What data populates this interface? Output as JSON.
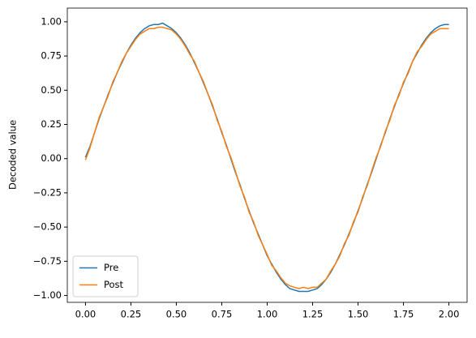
{
  "chart_data": {
    "type": "line",
    "ylabel": "Decoded value",
    "x": [
      0,
      0.025,
      0.05,
      0.075,
      0.1,
      0.125,
      0.15,
      0.175,
      0.2,
      0.225,
      0.25,
      0.275,
      0.3,
      0.325,
      0.35,
      0.375,
      0.4,
      0.425,
      0.45,
      0.475,
      0.5,
      0.525,
      0.55,
      0.575,
      0.6,
      0.625,
      0.65,
      0.675,
      0.7,
      0.725,
      0.75,
      0.775,
      0.8,
      0.825,
      0.85,
      0.875,
      0.9,
      0.925,
      0.95,
      0.975,
      1,
      1.025,
      1.05,
      1.075,
      1.1,
      1.125,
      1.15,
      1.175,
      1.2,
      1.225,
      1.25,
      1.275,
      1.3,
      1.325,
      1.35,
      1.375,
      1.4,
      1.425,
      1.45,
      1.475,
      1.5,
      1.525,
      1.55,
      1.575,
      1.6,
      1.625,
      1.65,
      1.675,
      1.7,
      1.725,
      1.75,
      1.775,
      1.8,
      1.825,
      1.85,
      1.875,
      1.9,
      1.925,
      1.95,
      1.975,
      2
    ],
    "series": [
      {
        "name": "Pre",
        "color": "#1f77b4",
        "values": [
          0.01,
          0.09,
          0.19,
          0.29,
          0.38,
          0.47,
          0.55,
          0.63,
          0.7,
          0.77,
          0.83,
          0.88,
          0.92,
          0.95,
          0.97,
          0.98,
          0.98,
          0.99,
          0.97,
          0.95,
          0.92,
          0.88,
          0.83,
          0.77,
          0.7,
          0.63,
          0.55,
          0.47,
          0.38,
          0.29,
          0.19,
          0.1,
          0.0,
          -0.1,
          -0.19,
          -0.29,
          -0.38,
          -0.47,
          -0.55,
          -0.63,
          -0.71,
          -0.77,
          -0.83,
          -0.88,
          -0.92,
          -0.95,
          -0.96,
          -0.97,
          -0.97,
          -0.97,
          -0.96,
          -0.95,
          -0.92,
          -0.88,
          -0.83,
          -0.77,
          -0.7,
          -0.63,
          -0.55,
          -0.47,
          -0.38,
          -0.29,
          -0.19,
          -0.1,
          0.0,
          0.1,
          0.19,
          0.29,
          0.38,
          0.47,
          0.55,
          0.63,
          0.71,
          0.77,
          0.83,
          0.88,
          0.92,
          0.95,
          0.97,
          0.98,
          0.98
        ]
      },
      {
        "name": "Post",
        "color": "#ff7f0e",
        "values": [
          -0.01,
          0.08,
          0.19,
          0.3,
          0.38,
          0.46,
          0.56,
          0.63,
          0.71,
          0.77,
          0.82,
          0.87,
          0.91,
          0.93,
          0.95,
          0.95,
          0.96,
          0.96,
          0.95,
          0.94,
          0.91,
          0.87,
          0.82,
          0.76,
          0.71,
          0.63,
          0.56,
          0.47,
          0.39,
          0.28,
          0.2,
          0.09,
          0.01,
          -0.09,
          -0.2,
          -0.28,
          -0.39,
          -0.46,
          -0.56,
          -0.63,
          -0.7,
          -0.78,
          -0.82,
          -0.87,
          -0.91,
          -0.93,
          -0.94,
          -0.95,
          -0.94,
          -0.95,
          -0.94,
          -0.94,
          -0.91,
          -0.88,
          -0.82,
          -0.77,
          -0.71,
          -0.62,
          -0.56,
          -0.46,
          -0.39,
          -0.28,
          -0.2,
          -0.09,
          0.01,
          0.09,
          0.2,
          0.28,
          0.39,
          0.46,
          0.56,
          0.62,
          0.71,
          0.78,
          0.82,
          0.87,
          0.91,
          0.93,
          0.95,
          0.95,
          0.95
        ]
      }
    ],
    "xlim": [
      -0.1,
      2.1
    ],
    "xticks": [
      {
        "value": 0,
        "label": "0.00"
      },
      {
        "value": 0.25,
        "label": "0.25"
      },
      {
        "value": 0.5,
        "label": "0.50"
      },
      {
        "value": 0.75,
        "label": "0.75"
      },
      {
        "value": 1,
        "label": "1.00"
      },
      {
        "value": 1.25,
        "label": "1.25"
      },
      {
        "value": 1.5,
        "label": "1.50"
      },
      {
        "value": 1.75,
        "label": "1.75"
      },
      {
        "value": 2,
        "label": "2.00"
      }
    ],
    "ylim": [
      -1.05,
      1.1
    ],
    "yticks": [
      {
        "value": -1,
        "label": "−1.00"
      },
      {
        "value": -0.75,
        "label": "−0.75"
      },
      {
        "value": -0.5,
        "label": "−0.50"
      },
      {
        "value": -0.25,
        "label": "−0.25"
      },
      {
        "value": 0,
        "label": "0.00"
      },
      {
        "value": 0.25,
        "label": "0.25"
      },
      {
        "value": 0.5,
        "label": "0.50"
      },
      {
        "value": 0.75,
        "label": "0.75"
      },
      {
        "value": 1,
        "label": "1.00"
      }
    ],
    "legend": "lower left",
    "grid": false
  }
}
